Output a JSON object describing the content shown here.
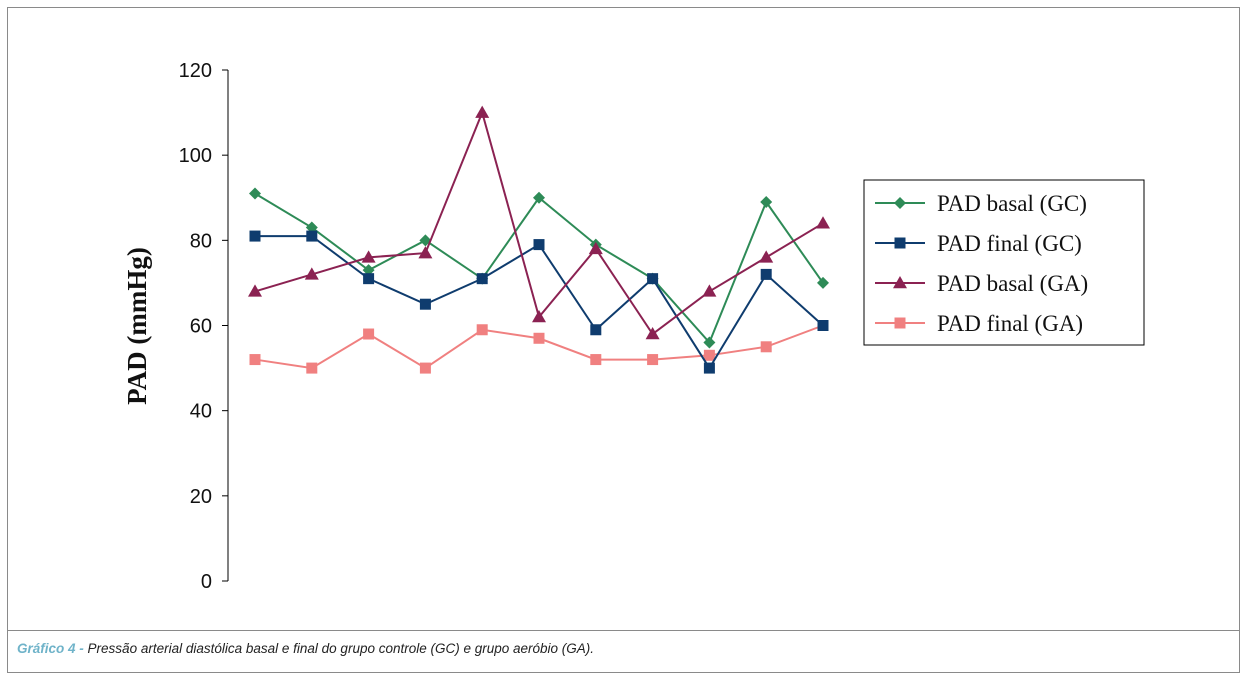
{
  "caption": {
    "lead": "Gráfico 4 -",
    "text": "Pressão arterial diastólica basal e final do grupo controle (GC) e grupo aeróbio (GA)."
  },
  "chart_data": {
    "type": "line",
    "title": "",
    "xlabel": "",
    "ylabel": "PAD (mmHg)",
    "ylim": [
      0,
      120
    ],
    "yticks": [
      0,
      20,
      40,
      60,
      80,
      100,
      120
    ],
    "x": [
      1,
      2,
      3,
      4,
      5,
      6,
      7,
      8,
      9,
      10,
      11
    ],
    "grid": false,
    "legend_position": "right",
    "series": [
      {
        "name": "PAD basal (GC)",
        "color": "#2e8b57",
        "marker": "diamond",
        "values": [
          91,
          83,
          73,
          80,
          71,
          90,
          79,
          71,
          56,
          89,
          70
        ]
      },
      {
        "name": "PAD final (GC)",
        "color": "#0f3c6e",
        "marker": "square",
        "values": [
          81,
          81,
          71,
          65,
          71,
          79,
          59,
          71,
          50,
          72,
          60
        ]
      },
      {
        "name": "PAD basal (GA)",
        "color": "#8b2252",
        "marker": "triangle",
        "values": [
          68,
          72,
          76,
          77,
          110,
          62,
          78,
          58,
          68,
          76,
          84
        ]
      },
      {
        "name": "PAD final (GA)",
        "color": "#f08080",
        "marker": "square",
        "values": [
          52,
          50,
          58,
          50,
          59,
          57,
          52,
          52,
          53,
          55,
          60
        ]
      }
    ]
  }
}
